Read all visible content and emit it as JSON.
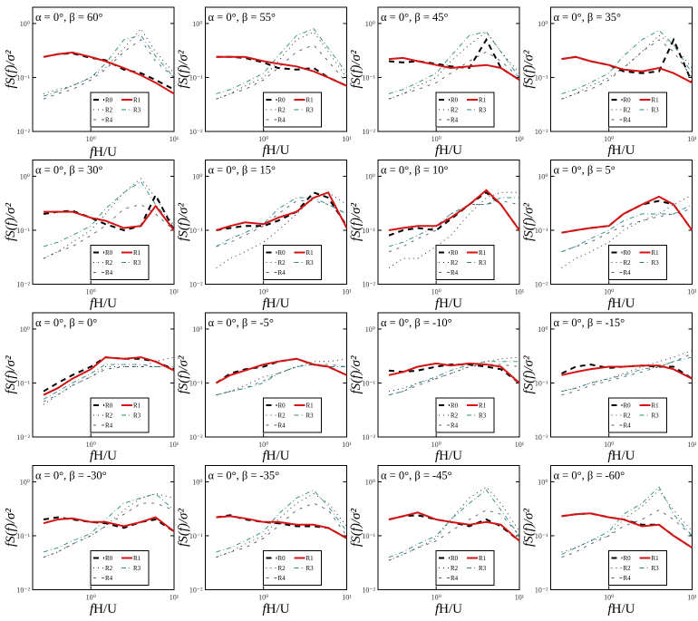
{
  "chart_data": {
    "type": "line",
    "layout": "4x4 grid of log-log spectra",
    "xlabel": "fH/U",
    "xlabel_italic_part": "f",
    "xlabel_rest": "H/U",
    "ylabel": "fS(f)/σ²",
    "xscale": "log",
    "yscale": "log",
    "xlim": [
      0.2,
      10
    ],
    "ylim": [
      0.01,
      2
    ],
    "xticks": [
      {
        "value": 1,
        "label": "10⁰"
      },
      {
        "value": 10,
        "label": "10¹"
      }
    ],
    "yticks": [
      {
        "value": 0.01,
        "label": "10⁻²"
      },
      {
        "value": 0.1,
        "label": "10⁻¹"
      },
      {
        "value": 1,
        "label": "10⁰"
      }
    ],
    "legend": {
      "placement": "bottom-center",
      "entries": [
        "R0",
        "R1",
        "R2",
        "R3",
        "R4"
      ]
    },
    "series_colors": {
      "R0": "#000000",
      "R1": "#d41414",
      "R2": "#333333",
      "R3": "#2a8a80",
      "R4": "#4a5a78"
    },
    "x": [
      0.27,
      0.4,
      0.6,
      1,
      1.5,
      2.5,
      4,
      6,
      10
    ],
    "panels": [
      {
        "title": "α = 0°, β = 60°",
        "series": {
          "R0": [
            0.24,
            0.27,
            0.28,
            0.23,
            0.21,
            0.14,
            0.12,
            0.09,
            0.06
          ],
          "R1": [
            0.24,
            0.27,
            0.29,
            0.24,
            0.2,
            0.15,
            0.11,
            0.08,
            0.05
          ],
          "R2": [
            0.05,
            0.06,
            0.07,
            0.1,
            0.15,
            0.35,
            0.8,
            0.3,
            0.12
          ],
          "R3": [
            0.045,
            0.055,
            0.07,
            0.1,
            0.18,
            0.5,
            0.6,
            0.25,
            0.1
          ],
          "R4": [
            0.04,
            0.05,
            0.06,
            0.09,
            0.14,
            0.3,
            0.5,
            0.2,
            0.1
          ]
        }
      },
      {
        "title": "α = 0°, β = 55°",
        "series": {
          "R0": [
            0.24,
            0.24,
            0.23,
            0.19,
            0.15,
            0.14,
            0.15,
            0.1,
            0.07
          ],
          "R1": [
            0.24,
            0.24,
            0.24,
            0.2,
            0.18,
            0.16,
            0.13,
            0.1,
            0.07
          ],
          "R2": [
            0.04,
            0.05,
            0.07,
            0.1,
            0.2,
            0.5,
            0.7,
            0.3,
            0.1
          ],
          "R3": [
            0.05,
            0.06,
            0.08,
            0.12,
            0.25,
            0.6,
            0.8,
            0.35,
            0.12
          ],
          "R4": [
            0.04,
            0.05,
            0.06,
            0.09,
            0.15,
            0.3,
            0.4,
            0.2,
            0.08
          ]
        }
      },
      {
        "title": "α = 0°, β = 45°",
        "series": {
          "R0": [
            0.2,
            0.19,
            0.2,
            0.18,
            0.16,
            0.15,
            0.5,
            0.15,
            0.09
          ],
          "R1": [
            0.22,
            0.23,
            0.2,
            0.17,
            0.15,
            0.16,
            0.17,
            0.15,
            0.09
          ],
          "R2": [
            0.04,
            0.05,
            0.07,
            0.1,
            0.2,
            0.4,
            0.7,
            0.3,
            0.12
          ],
          "R3": [
            0.05,
            0.06,
            0.08,
            0.12,
            0.25,
            0.6,
            0.7,
            0.3,
            0.1
          ],
          "R4": [
            0.04,
            0.05,
            0.06,
            0.08,
            0.12,
            0.2,
            0.3,
            0.2,
            0.1
          ]
        }
      },
      {
        "title": "α = 0°, β = 35°",
        "series": {
          "R0": [
            0.22,
            0.24,
            0.2,
            0.17,
            0.13,
            0.12,
            0.13,
            0.5,
            0.08
          ],
          "R1": [
            0.22,
            0.24,
            0.2,
            0.17,
            0.14,
            0.13,
            0.15,
            0.12,
            0.08
          ],
          "R2": [
            0.04,
            0.05,
            0.07,
            0.1,
            0.15,
            0.3,
            0.6,
            0.4,
            0.15
          ],
          "R3": [
            0.05,
            0.06,
            0.08,
            0.12,
            0.25,
            0.5,
            0.75,
            0.4,
            0.12
          ],
          "R4": [
            0.04,
            0.05,
            0.06,
            0.09,
            0.15,
            0.3,
            0.5,
            0.3,
            0.1
          ]
        }
      },
      {
        "title": "α = 0°, β = 30°",
        "series": {
          "R0": [
            0.2,
            0.22,
            0.23,
            0.17,
            0.13,
            0.1,
            0.12,
            0.45,
            0.1
          ],
          "R1": [
            0.22,
            0.22,
            0.22,
            0.17,
            0.15,
            0.11,
            0.12,
            0.28,
            0.1
          ],
          "R2": [
            0.03,
            0.04,
            0.06,
            0.1,
            0.2,
            0.5,
            0.9,
            0.4,
            0.12
          ],
          "R3": [
            0.05,
            0.06,
            0.08,
            0.12,
            0.25,
            0.5,
            0.8,
            0.3,
            0.12
          ],
          "R4": [
            0.03,
            0.04,
            0.05,
            0.08,
            0.12,
            0.25,
            0.3,
            0.2,
            0.1
          ]
        }
      },
      {
        "title": "α = 0°, β = 15°",
        "series": {
          "R0": [
            0.1,
            0.11,
            0.12,
            0.12,
            0.15,
            0.22,
            0.5,
            0.4,
            0.12
          ],
          "R1": [
            0.1,
            0.12,
            0.14,
            0.13,
            0.17,
            0.22,
            0.4,
            0.5,
            0.11
          ],
          "R2": [
            0.02,
            0.03,
            0.04,
            0.06,
            0.1,
            0.2,
            0.4,
            0.5,
            0.3
          ],
          "R3": [
            0.05,
            0.07,
            0.09,
            0.13,
            0.25,
            0.4,
            0.4,
            0.3,
            0.2
          ],
          "R4": [
            0.05,
            0.06,
            0.08,
            0.12,
            0.2,
            0.35,
            0.35,
            0.3,
            0.2
          ]
        }
      },
      {
        "title": "α = 0°, β = 10°",
        "series": {
          "R0": [
            0.08,
            0.1,
            0.11,
            0.1,
            0.16,
            0.3,
            0.5,
            0.3,
            0.1
          ],
          "R1": [
            0.1,
            0.11,
            0.12,
            0.12,
            0.17,
            0.3,
            0.55,
            0.3,
            0.1
          ],
          "R2": [
            0.02,
            0.03,
            0.03,
            0.05,
            0.08,
            0.2,
            0.4,
            0.5,
            0.5
          ],
          "R3": [
            0.05,
            0.06,
            0.08,
            0.12,
            0.2,
            0.3,
            0.3,
            0.4,
            0.4
          ],
          "R4": [
            0.04,
            0.05,
            0.07,
            0.1,
            0.2,
            0.3,
            0.3,
            0.35,
            0.3
          ]
        }
      },
      {
        "title": "α = 0°, β = 5°",
        "series": {
          "R0": [
            0.09,
            0.1,
            0.11,
            0.12,
            0.2,
            0.3,
            0.35,
            0.3,
            0.1
          ],
          "R1": [
            0.09,
            0.1,
            0.11,
            0.12,
            0.2,
            0.3,
            0.42,
            0.3,
            0.1
          ],
          "R2": [
            0.02,
            0.03,
            0.04,
            0.06,
            0.1,
            0.15,
            0.2,
            0.3,
            0.45
          ],
          "R3": [
            0.04,
            0.05,
            0.07,
            0.1,
            0.15,
            0.2,
            0.2,
            0.2,
            0.3
          ],
          "R4": [
            0.04,
            0.05,
            0.06,
            0.09,
            0.12,
            0.15,
            0.18,
            0.2,
            0.25
          ]
        }
      },
      {
        "title": "α = 0°, β = 0°",
        "series": {
          "R0": [
            0.07,
            0.1,
            0.14,
            0.2,
            0.3,
            0.28,
            0.28,
            0.25,
            0.18
          ],
          "R1": [
            0.06,
            0.08,
            0.12,
            0.18,
            0.3,
            0.28,
            0.3,
            0.25,
            0.17
          ],
          "R2": [
            0.04,
            0.06,
            0.09,
            0.13,
            0.2,
            0.2,
            0.2,
            0.25,
            0.3
          ],
          "R3": [
            0.05,
            0.07,
            0.1,
            0.15,
            0.22,
            0.22,
            0.22,
            0.2,
            0.2
          ],
          "R4": [
            0.045,
            0.06,
            0.09,
            0.13,
            0.18,
            0.2,
            0.2,
            0.2,
            0.2
          ]
        }
      },
      {
        "title": "α = 0°, β = -5°",
        "series": {
          "R0": [
            0.1,
            0.15,
            0.18,
            0.2,
            0.25,
            0.28,
            0.22,
            0.2,
            0.14
          ],
          "R1": [
            0.1,
            0.14,
            0.17,
            0.22,
            0.25,
            0.28,
            0.22,
            0.2,
            0.14
          ],
          "R2": [
            0.06,
            0.07,
            0.09,
            0.13,
            0.15,
            0.2,
            0.25,
            0.25,
            0.28
          ],
          "R3": [
            0.06,
            0.07,
            0.08,
            0.1,
            0.15,
            0.2,
            0.22,
            0.2,
            0.2
          ],
          "R4": [
            0.06,
            0.07,
            0.08,
            0.11,
            0.15,
            0.2,
            0.22,
            0.22,
            0.2
          ]
        }
      },
      {
        "title": "α = 0°, β = -10°",
        "series": {
          "R0": [
            0.17,
            0.16,
            0.17,
            0.2,
            0.22,
            0.22,
            0.2,
            0.18,
            0.1
          ],
          "R1": [
            0.14,
            0.16,
            0.2,
            0.23,
            0.21,
            0.23,
            0.22,
            0.2,
            0.1
          ],
          "R2": [
            0.07,
            0.08,
            0.1,
            0.12,
            0.15,
            0.2,
            0.25,
            0.28,
            0.3
          ],
          "R3": [
            0.06,
            0.07,
            0.1,
            0.13,
            0.17,
            0.22,
            0.25,
            0.25,
            0.25
          ],
          "R4": [
            0.06,
            0.07,
            0.09,
            0.12,
            0.15,
            0.2,
            0.22,
            0.22,
            0.2
          ]
        }
      },
      {
        "title": "α = 0°, β = -15°",
        "series": {
          "R0": [
            0.15,
            0.2,
            0.22,
            0.19,
            0.2,
            0.21,
            0.2,
            0.2,
            0.12
          ],
          "R1": [
            0.14,
            0.16,
            0.18,
            0.2,
            0.2,
            0.21,
            0.21,
            0.18,
            0.12
          ],
          "R2": [
            0.07,
            0.08,
            0.1,
            0.12,
            0.15,
            0.2,
            0.25,
            0.3,
            0.4
          ],
          "R3": [
            0.07,
            0.08,
            0.1,
            0.12,
            0.14,
            0.18,
            0.2,
            0.25,
            0.3
          ],
          "R4": [
            0.06,
            0.07,
            0.09,
            0.11,
            0.13,
            0.16,
            0.2,
            0.25,
            0.35
          ]
        }
      },
      {
        "title": "α = 0°, β = -30°",
        "series": {
          "R0": [
            0.2,
            0.22,
            0.2,
            0.18,
            0.17,
            0.14,
            0.18,
            0.2,
            0.12
          ],
          "R1": [
            0.17,
            0.2,
            0.21,
            0.18,
            0.18,
            0.15,
            0.18,
            0.22,
            0.12
          ],
          "R2": [
            0.04,
            0.05,
            0.07,
            0.1,
            0.15,
            0.3,
            0.5,
            0.6,
            0.5
          ],
          "R3": [
            0.05,
            0.06,
            0.08,
            0.11,
            0.2,
            0.4,
            0.5,
            0.6,
            0.3
          ],
          "R4": [
            0.04,
            0.05,
            0.07,
            0.1,
            0.15,
            0.25,
            0.4,
            0.4,
            0.3
          ]
        }
      },
      {
        "title": "α = 0°, β = -35°",
        "series": {
          "R0": [
            0.22,
            0.24,
            0.2,
            0.18,
            0.17,
            0.15,
            0.15,
            0.14,
            0.09
          ],
          "R1": [
            0.22,
            0.23,
            0.21,
            0.18,
            0.18,
            0.16,
            0.16,
            0.14,
            0.09
          ],
          "R2": [
            0.04,
            0.05,
            0.07,
            0.1,
            0.2,
            0.4,
            0.6,
            0.4,
            0.15
          ],
          "R3": [
            0.05,
            0.06,
            0.08,
            0.12,
            0.25,
            0.5,
            0.7,
            0.35,
            0.12
          ],
          "R4": [
            0.04,
            0.05,
            0.06,
            0.09,
            0.15,
            0.3,
            0.4,
            0.3,
            0.1
          ]
        }
      },
      {
        "title": "α = 0°, β = -45°",
        "series": {
          "R0": [
            0.2,
            0.23,
            0.24,
            0.2,
            0.18,
            0.15,
            0.2,
            0.15,
            0.08
          ],
          "R1": [
            0.2,
            0.23,
            0.27,
            0.2,
            0.18,
            0.16,
            0.18,
            0.16,
            0.08
          ],
          "R2": [
            0.035,
            0.045,
            0.06,
            0.09,
            0.2,
            0.5,
            0.8,
            0.4,
            0.12
          ],
          "R3": [
            0.04,
            0.05,
            0.07,
            0.1,
            0.2,
            0.4,
            0.7,
            0.3,
            0.1
          ],
          "R4": [
            0.035,
            0.045,
            0.06,
            0.08,
            0.12,
            0.2,
            0.3,
            0.25,
            0.1
          ]
        }
      },
      {
        "title": "α = 0°, β = -60°",
        "series": {
          "R0": [
            0.23,
            0.25,
            0.26,
            0.22,
            0.2,
            0.16,
            0.16,
            0.1,
            0.06
          ],
          "R1": [
            0.23,
            0.25,
            0.26,
            0.22,
            0.2,
            0.15,
            0.16,
            0.1,
            0.06
          ],
          "R2": [
            0.05,
            0.06,
            0.08,
            0.1,
            0.2,
            0.35,
            0.7,
            0.3,
            0.12
          ],
          "R3": [
            0.045,
            0.06,
            0.08,
            0.12,
            0.25,
            0.4,
            0.8,
            0.25,
            0.1
          ],
          "R4": [
            0.04,
            0.05,
            0.07,
            0.1,
            0.15,
            0.2,
            0.3,
            0.2,
            0.1
          ]
        }
      }
    ]
  }
}
